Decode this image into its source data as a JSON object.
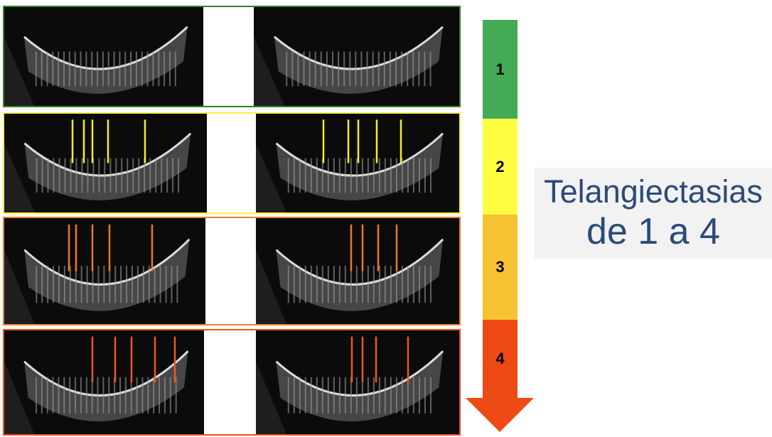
{
  "grades": [
    {
      "label": "1",
      "color": "#44aa55",
      "border": "#3a7d2a",
      "marker_color": null,
      "markers_left": [],
      "markers_right": []
    },
    {
      "label": "2",
      "color": "#fdfd42",
      "border": "#f8f04a",
      "marker_color": "#f5f020",
      "markers_left": [
        100,
        116,
        128,
        150,
        202
      ],
      "markers_right": [
        453,
        488,
        502,
        528,
        562
      ]
    },
    {
      "label": "3",
      "color": "#f6c232",
      "border": "#f07f2a",
      "marker_color": "#f07a22",
      "markers_left": [
        95,
        105,
        128,
        152,
        212
      ],
      "markers_right": [
        492,
        508,
        530,
        556
      ]
    },
    {
      "label": "4",
      "color": "#ee4a16",
      "border": "#e9531e",
      "marker_color": "#ee5a1e",
      "markers_left": [
        128,
        160,
        183,
        216,
        244
      ],
      "markers_right": [
        493,
        508,
        527,
        572
      ]
    }
  ],
  "label": {
    "line1": "Telangiectasias",
    "line2": "de 1 a 4",
    "text_color": "#2b4a78"
  }
}
